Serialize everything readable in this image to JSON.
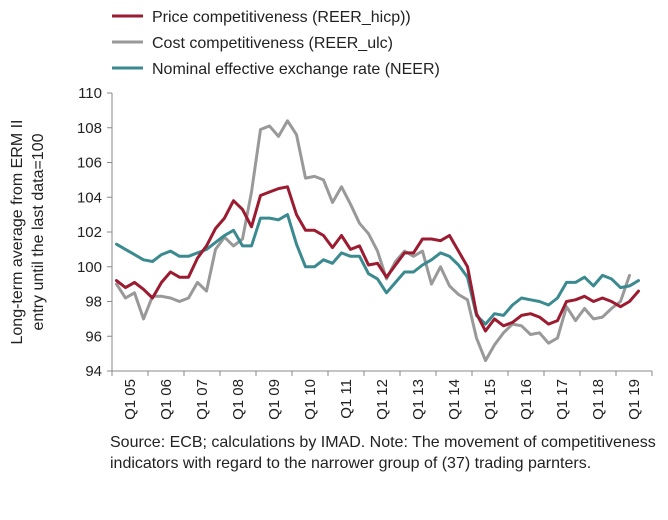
{
  "chart_data": {
    "type": "line",
    "ylabel_lines": [
      "Long-term average from ERM II",
      "entry until the last data=100"
    ],
    "xlabel": "",
    "ylim": [
      94,
      110
    ],
    "yticks": [
      94,
      96,
      98,
      100,
      102,
      104,
      106,
      108,
      110
    ],
    "grid": false,
    "legend_position": "top-left",
    "x_tick_labels": [
      "Q1 05",
      "Q1 06",
      "Q1 07",
      "Q1 08",
      "Q1 09",
      "Q1 10",
      "Q1 11",
      "Q1 12",
      "Q1 13",
      "Q1 14",
      "Q1 15",
      "Q1 16",
      "Q1 17",
      "Q1 18",
      "Q1 19"
    ],
    "x_start": "2005 Q1",
    "x_end": "2019 Q4",
    "series": [
      {
        "name": "Price competitiveness (REER_hicp))",
        "color": "#9b1b30",
        "values": [
          99.2,
          98.8,
          99.1,
          98.7,
          98.2,
          99.1,
          99.7,
          99.4,
          99.4,
          100.5,
          101.2,
          102.2,
          102.8,
          103.8,
          103.3,
          102.3,
          104.1,
          104.3,
          104.5,
          104.6,
          103.0,
          102.1,
          102.1,
          101.8,
          101.1,
          101.8,
          101.0,
          101.2,
          100.1,
          100.2,
          99.4,
          100.1,
          100.8,
          100.8,
          101.6,
          101.6,
          101.5,
          101.8,
          100.9,
          100.0,
          97.3,
          96.3,
          97.0,
          96.6,
          96.8,
          97.2,
          97.3,
          97.1,
          96.7,
          96.9,
          98.0,
          98.1,
          98.3,
          98.0,
          98.2,
          98.0,
          97.7,
          98.0,
          98.6
        ]
      },
      {
        "name": "Cost competitiveness (REER_ulc)",
        "color": "#999999",
        "values": [
          99.0,
          98.2,
          98.5,
          97.0,
          98.3,
          98.3,
          98.2,
          98.0,
          98.2,
          99.1,
          98.6,
          101.0,
          101.7,
          101.2,
          101.6,
          104.3,
          107.9,
          108.1,
          107.5,
          108.4,
          107.6,
          105.1,
          105.2,
          105.0,
          103.7,
          104.6,
          103.6,
          102.5,
          101.9,
          100.9,
          99.3,
          100.3,
          100.9,
          100.6,
          100.9,
          99.0,
          100.0,
          98.9,
          98.4,
          98.1,
          95.9,
          94.6,
          95.5,
          96.2,
          96.7,
          96.6,
          96.1,
          96.2,
          95.6,
          95.9,
          97.7,
          96.9,
          97.6,
          97.0,
          97.1,
          97.6,
          98.0,
          99.5
        ]
      },
      {
        "name": "Nominal effective exchange rate (NEER)",
        "color": "#3a8a8f",
        "values": [
          101.3,
          101.0,
          100.7,
          100.4,
          100.3,
          100.7,
          100.9,
          100.6,
          100.6,
          100.8,
          101.0,
          101.4,
          101.8,
          102.1,
          101.2,
          101.2,
          102.8,
          102.8,
          102.7,
          103.0,
          101.3,
          100.0,
          100.0,
          100.4,
          100.2,
          100.8,
          100.6,
          100.6,
          99.6,
          99.3,
          98.5,
          99.1,
          99.7,
          99.7,
          100.1,
          100.4,
          100.8,
          100.6,
          100.1,
          99.4,
          97.2,
          96.7,
          97.3,
          97.2,
          97.8,
          98.2,
          98.1,
          98.0,
          97.8,
          98.2,
          99.1,
          99.1,
          99.4,
          98.9,
          99.5,
          99.3,
          98.8,
          98.9,
          99.2
        ]
      }
    ]
  },
  "source_note": "Source: ECB; calculations by IMAD. Note: The movement of competitiveness indicators with regard to the narrower group of (37) trading parnters."
}
